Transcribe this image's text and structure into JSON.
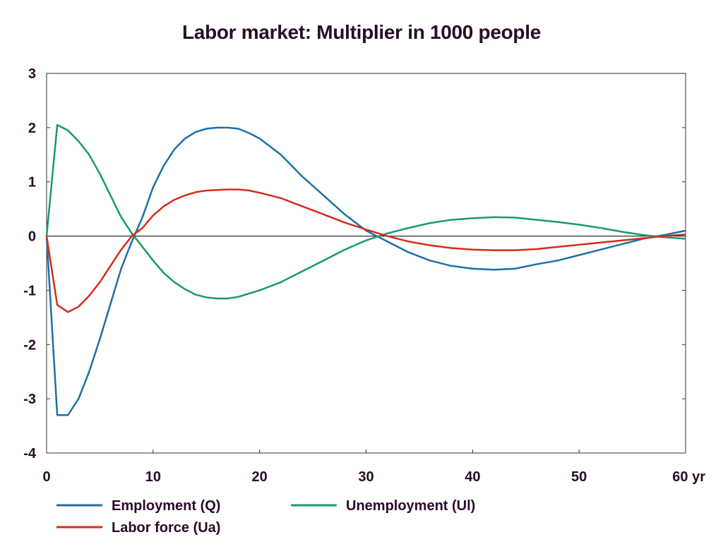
{
  "chart_data": {
    "type": "line",
    "title": "Labor market: Multiplier in 1000 people",
    "xlabel": "",
    "ylabel": "",
    "xlim": [
      0,
      60
    ],
    "ylim": [
      -4,
      3
    ],
    "x_ticks": [
      0,
      10,
      20,
      30,
      40,
      50,
      60
    ],
    "x_tick_labels": [
      "0",
      "10",
      "20",
      "30",
      "40",
      "50",
      "60 yr"
    ],
    "y_ticks": [
      3,
      2,
      1,
      0,
      -1,
      -2,
      -3,
      -4
    ],
    "y_tick_labels": [
      "3",
      "2",
      "1",
      "0",
      "-1",
      "-2",
      "-3",
      "-4"
    ],
    "grid": false,
    "legend_position": "bottom",
    "series": [
      {
        "name": "Employment (Q)",
        "color": "#1f6fa8",
        "x": [
          0,
          1,
          2,
          3,
          4,
          5,
          6,
          7,
          8,
          9,
          10,
          11,
          12,
          13,
          14,
          15,
          16,
          17,
          18,
          19,
          20,
          22,
          24,
          26,
          28,
          30,
          32,
          34,
          36,
          38,
          40,
          42,
          44,
          46,
          48,
          50,
          52,
          54,
          56,
          58,
          60
        ],
        "y": [
          0,
          -3.3,
          -3.3,
          -3.0,
          -2.5,
          -1.9,
          -1.25,
          -0.6,
          -0.1,
          0.35,
          0.9,
          1.3,
          1.6,
          1.8,
          1.92,
          1.98,
          2.0,
          2.0,
          1.98,
          1.9,
          1.8,
          1.5,
          1.1,
          0.75,
          0.4,
          0.1,
          -0.1,
          -0.3,
          -0.45,
          -0.55,
          -0.6,
          -0.62,
          -0.6,
          -0.52,
          -0.45,
          -0.35,
          -0.25,
          -0.15,
          -0.05,
          0.02,
          0.1
        ]
      },
      {
        "name": "Unemployment (Ul)",
        "color": "#1a9a6c",
        "x": [
          0,
          1,
          2,
          3,
          4,
          5,
          6,
          7,
          8,
          9,
          10,
          11,
          12,
          13,
          14,
          15,
          16,
          17,
          18,
          19,
          20,
          22,
          24,
          26,
          28,
          30,
          32,
          34,
          36,
          38,
          40,
          42,
          44,
          46,
          48,
          50,
          52,
          54,
          56,
          58,
          60
        ],
        "y": [
          0,
          2.05,
          1.95,
          1.75,
          1.5,
          1.15,
          0.75,
          0.35,
          0.05,
          -0.2,
          -0.45,
          -0.68,
          -0.85,
          -0.98,
          -1.08,
          -1.13,
          -1.15,
          -1.15,
          -1.12,
          -1.06,
          -1.0,
          -0.85,
          -0.65,
          -0.45,
          -0.25,
          -0.08,
          0.05,
          0.15,
          0.24,
          0.3,
          0.33,
          0.35,
          0.34,
          0.3,
          0.26,
          0.21,
          0.15,
          0.08,
          0.02,
          -0.02,
          -0.05
        ]
      },
      {
        "name": "Labor force (Ua)",
        "color": "#d52b1e",
        "x": [
          0,
          1,
          2,
          3,
          4,
          5,
          6,
          7,
          8,
          9,
          10,
          11,
          12,
          13,
          14,
          15,
          16,
          17,
          18,
          19,
          20,
          22,
          24,
          26,
          28,
          30,
          32,
          34,
          36,
          38,
          40,
          42,
          44,
          46,
          48,
          50,
          52,
          54,
          56,
          58,
          60
        ],
        "y": [
          0,
          -1.27,
          -1.4,
          -1.3,
          -1.1,
          -0.85,
          -0.55,
          -0.25,
          0.0,
          0.15,
          0.38,
          0.55,
          0.67,
          0.75,
          0.81,
          0.84,
          0.85,
          0.86,
          0.86,
          0.84,
          0.8,
          0.7,
          0.55,
          0.4,
          0.25,
          0.12,
          0.0,
          -0.1,
          -0.17,
          -0.22,
          -0.25,
          -0.26,
          -0.26,
          -0.24,
          -0.2,
          -0.16,
          -0.12,
          -0.08,
          -0.04,
          0.0,
          0.03
        ]
      }
    ]
  }
}
